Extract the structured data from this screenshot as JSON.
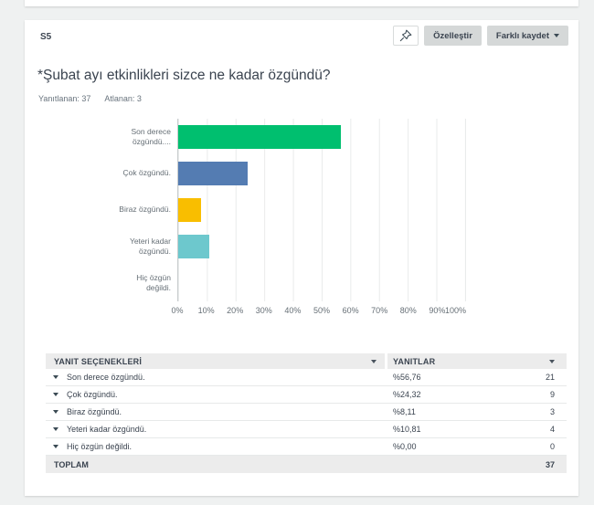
{
  "header": {
    "question_number": "S5",
    "customize_label": "Özelleştir",
    "save_as_label": "Farklı kaydet"
  },
  "question": {
    "title": "*Şubat ayı etkinlikleri sizce ne kadar özgündü?",
    "answered": "Yanıtlanan: 37",
    "skipped": "Atlanan: 3"
  },
  "chart_data": {
    "type": "bar",
    "orientation": "horizontal",
    "categories": [
      "Son derece özgündü....",
      "Çok özgündü.",
      "Biraz özgündü.",
      "Yeteri kadar özgündü.",
      "Hiç özgün değildi."
    ],
    "values": [
      56.76,
      24.32,
      8.11,
      10.81,
      0
    ],
    "colors": [
      "#00bf6f",
      "#547cb2",
      "#f9be00",
      "#6dc8cd",
      "#cccccc"
    ],
    "x_ticks": [
      "0%",
      "10%",
      "20%",
      "30%",
      "40%",
      "50%",
      "60%",
      "70%",
      "80%",
      "90%",
      "100%"
    ],
    "xlim": [
      0,
      100
    ],
    "grid": true,
    "legend": false,
    "title": "",
    "xlabel": "",
    "ylabel": ""
  },
  "table": {
    "headers": [
      "YANIT SEÇENEKLERİ",
      "YANITLAR"
    ],
    "rows": [
      {
        "label": "Son derece özgündü.",
        "percent": "%56,76",
        "count": "21"
      },
      {
        "label": "Çok özgündü.",
        "percent": "%24,32",
        "count": "9"
      },
      {
        "label": "Biraz özgündü.",
        "percent": "%8,11",
        "count": "3"
      },
      {
        "label": "Yeteri kadar özgündü.",
        "percent": "%10,81",
        "count": "4"
      },
      {
        "label": "Hiç özgün değildi.",
        "percent": "%0,00",
        "count": "0"
      }
    ],
    "total_label": "TOPLAM",
    "total_value": "37"
  }
}
